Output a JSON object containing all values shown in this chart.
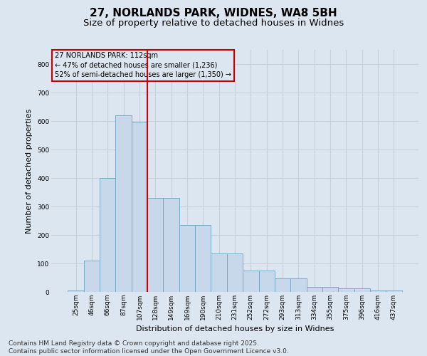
{
  "title1": "27, NORLANDS PARK, WIDNES, WA8 5BH",
  "title2": "Size of property relative to detached houses in Widnes",
  "xlabel": "Distribution of detached houses by size in Widnes",
  "ylabel": "Number of detached properties",
  "annotation_line1": "27 NORLANDS PARK: 112sqm",
  "annotation_line2": "← 47% of detached houses are smaller (1,236)",
  "annotation_line3": "52% of semi-detached houses are larger (1,350) →",
  "bar_color": "#c8d8eb",
  "bar_edge_color": "#7aaac8",
  "grid_color": "#c8d0dc",
  "bg_color": "#dce6f0",
  "red_line_color": "#cc0000",
  "annotation_box_edge": "#cc0000",
  "categories": [
    "25sqm",
    "46sqm",
    "66sqm",
    "87sqm",
    "107sqm",
    "128sqm",
    "149sqm",
    "169sqm",
    "190sqm",
    "210sqm",
    "231sqm",
    "252sqm",
    "272sqm",
    "293sqm",
    "313sqm",
    "334sqm",
    "355sqm",
    "375sqm",
    "396sqm",
    "416sqm",
    "437sqm"
  ],
  "values": [
    5,
    110,
    400,
    620,
    595,
    330,
    330,
    235,
    235,
    135,
    135,
    75,
    75,
    48,
    48,
    18,
    18,
    12,
    12,
    5,
    5
  ],
  "red_line_x": 4.5,
  "ylim": [
    0,
    850
  ],
  "yticks": [
    0,
    100,
    200,
    300,
    400,
    500,
    600,
    700,
    800
  ],
  "footer_line1": "Contains HM Land Registry data © Crown copyright and database right 2025.",
  "footer_line2": "Contains public sector information licensed under the Open Government Licence v3.0.",
  "footer_fontsize": 6.5,
  "title_fontsize1": 11,
  "title_fontsize2": 9.5,
  "ylabel_fontsize": 8,
  "xlabel_fontsize": 8,
  "annotation_fontsize": 7,
  "tick_fontsize": 6.5
}
